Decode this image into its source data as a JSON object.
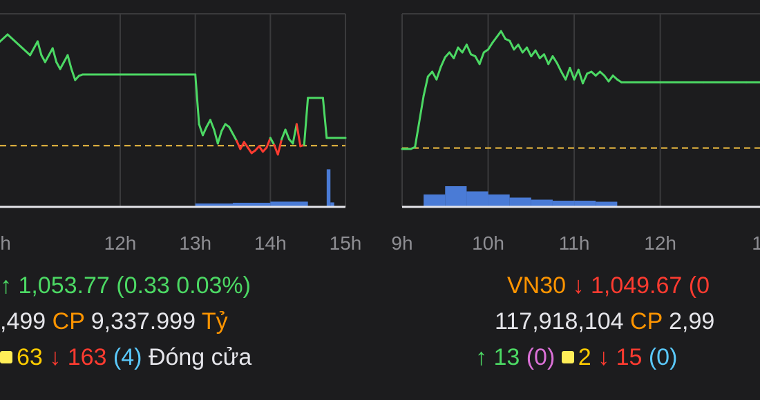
{
  "chart_data": [
    {
      "type": "line",
      "ticks": [
        "12h",
        "13h",
        "14h",
        "15h"
      ],
      "x_label_fragment": "h",
      "series": [
        {
          "x": [
            9.0,
            9.25,
            9.5,
            9.75,
            10.0,
            10.2,
            10.4,
            10.5,
            10.6,
            10.7,
            10.8,
            10.85,
            10.9,
            10.95,
            11.0,
            11.05,
            11.1,
            11.15,
            11.2,
            11.25,
            11.3,
            11.35,
            11.4,
            11.45,
            11.5,
            11.5,
            13.0,
            13.05,
            13.1,
            13.15,
            13.2,
            13.25,
            13.3,
            13.35,
            13.4,
            13.45,
            13.5,
            13.55,
            13.6,
            13.65,
            13.7,
            13.75,
            13.8,
            13.85,
            13.9,
            13.95,
            14.0,
            14.05,
            14.1,
            14.15,
            14.2,
            14.25,
            14.3,
            14.35,
            14.4,
            14.45,
            14.5,
            14.55,
            14.6,
            14.65,
            14.7,
            14.75,
            14.8,
            14.85,
            14.9,
            14.95,
            15.0
          ],
          "y": [
            1052.0,
            1054.0,
            1056.0,
            1058.0,
            1059.0,
            1060.0,
            1061.0,
            1061.5,
            1061.0,
            1060.5,
            1060.0,
            1060.5,
            1061.0,
            1060.0,
            1059.5,
            1060.0,
            1060.5,
            1059.5,
            1059.0,
            1059.5,
            1060.0,
            1059.0,
            1058.2,
            1058.5,
            1058.6,
            1058.6,
            1058.6,
            1055.0,
            1054.2,
            1054.8,
            1055.3,
            1054.6,
            1053.6,
            1054.5,
            1055.0,
            1054.8,
            1054.3,
            1053.8,
            1053.2,
            1053.7,
            1053.3,
            1052.9,
            1053.1,
            1053.4,
            1053.0,
            1053.3,
            1054.0,
            1053.5,
            1052.8,
            1053.9,
            1054.6,
            1053.9,
            1053.6,
            1055.0,
            1053.4,
            1053.5,
            1056.9,
            1056.9,
            1056.9,
            1056.9,
            1056.9,
            1054.0,
            1054.0,
            1054.0,
            1054.0,
            1054.0,
            1054.0
          ]
        }
      ],
      "reference_y": 1053.44,
      "xlim": [
        9.0,
        15.0
      ],
      "ylim": [
        1049.0,
        1063.0
      ],
      "volume": [
        {
          "x0": 9.0,
          "x1": 9.4,
          "v": 0.4
        },
        {
          "x0": 13.0,
          "x1": 13.5,
          "v": 0.45
        },
        {
          "x0": 13.5,
          "x1": 14.0,
          "v": 0.55
        },
        {
          "x0": 14.0,
          "x1": 14.5,
          "v": 0.7
        },
        {
          "x0": 14.75,
          "x1": 14.8,
          "v": 5.0
        },
        {
          "x0": 14.8,
          "x1": 14.85,
          "v": 0.6
        }
      ],
      "vol_max": 5.5,
      "colors": {
        "up": "#4cd964",
        "down": "#ff3b30",
        "reference": "#f5c242",
        "volume": "#4a7bd6"
      }
    },
    {
      "type": "line",
      "ticks": [
        "9h",
        "10h",
        "11h",
        "12h"
      ],
      "x_label_fragment": "1",
      "series": [
        {
          "x": [
            9.0,
            9.1,
            9.15,
            9.25,
            9.3,
            9.35,
            9.4,
            9.45,
            9.5,
            9.55,
            9.6,
            9.65,
            9.7,
            9.75,
            9.8,
            9.85,
            9.9,
            9.95,
            10.0,
            10.05,
            10.1,
            10.15,
            10.2,
            10.25,
            10.3,
            10.35,
            10.4,
            10.45,
            10.5,
            10.55,
            10.6,
            10.65,
            10.7,
            10.75,
            10.8,
            10.85,
            10.9,
            10.95,
            11.0,
            11.05,
            11.1,
            11.15,
            11.2,
            11.25,
            11.3,
            11.35,
            11.4,
            11.45,
            11.5,
            11.55,
            12.0,
            12.5,
            13.0,
            13.4
          ],
          "y": [
            1044.0,
            1044.0,
            1044.2,
            1049.5,
            1051.5,
            1052.0,
            1051.2,
            1052.5,
            1053.5,
            1054.0,
            1053.4,
            1054.5,
            1054.0,
            1054.8,
            1053.8,
            1053.6,
            1052.8,
            1054.0,
            1054.3,
            1055.0,
            1055.6,
            1056.2,
            1055.4,
            1055.2,
            1054.3,
            1054.8,
            1054.0,
            1054.5,
            1053.6,
            1054.2,
            1053.4,
            1053.8,
            1052.8,
            1053.6,
            1052.9,
            1052.0,
            1051.2,
            1052.4,
            1051.2,
            1052.2,
            1050.8,
            1051.8,
            1052.0,
            1051.6,
            1052.0,
            1051.6,
            1051.0,
            1051.6,
            1051.2,
            1050.9,
            1050.9,
            1050.9,
            1050.9,
            1050.9
          ]
        }
      ],
      "reference_y": 1044.1,
      "xlim": [
        9.0,
        13.4
      ],
      "ylim": [
        1038.0,
        1058.0
      ],
      "volume": [
        {
          "x0": 9.25,
          "x1": 9.5,
          "v": 0.6
        },
        {
          "x0": 9.5,
          "x1": 9.75,
          "v": 1.0
        },
        {
          "x0": 9.75,
          "x1": 10.0,
          "v": 0.75
        },
        {
          "x0": 10.0,
          "x1": 10.25,
          "v": 0.6
        },
        {
          "x0": 10.25,
          "x1": 10.5,
          "v": 0.45
        },
        {
          "x0": 10.5,
          "x1": 10.75,
          "v": 0.35
        },
        {
          "x0": 10.75,
          "x1": 11.0,
          "v": 0.3
        },
        {
          "x0": 11.0,
          "x1": 11.25,
          "v": 0.3
        },
        {
          "x0": 11.25,
          "x1": 11.5,
          "v": 0.25
        }
      ],
      "vol_max": 2.0,
      "colors": {
        "up": "#4cd964",
        "down": "#ff3b30",
        "reference": "#f5c242",
        "volume": "#4a7bd6"
      }
    }
  ],
  "left_stats": {
    "line1": {
      "arrow": "up-arrow",
      "value": "1,053.77",
      "change": "(0.33 0.03%)"
    },
    "line2": {
      "volume": ",499",
      "cp_label": "CP",
      "amount": "9,337.999",
      "unit": "Tỷ"
    },
    "line3": {
      "flat": "63",
      "down": "163",
      "down_ceiling": "(4)",
      "status": "Đóng cửa"
    }
  },
  "right_stats": {
    "line1": {
      "index": "VN30",
      "arrow": "down-arrow",
      "value": "1,049.67",
      "change_fragment": "(0"
    },
    "line2": {
      "volume": "117,918,104",
      "cp_label": "CP",
      "amount_fragment": "2,99"
    },
    "line3": {
      "up": "13",
      "up_ceiling": "(0)",
      "flat": "2",
      "down": "15",
      "down_floor": "(0)"
    }
  }
}
